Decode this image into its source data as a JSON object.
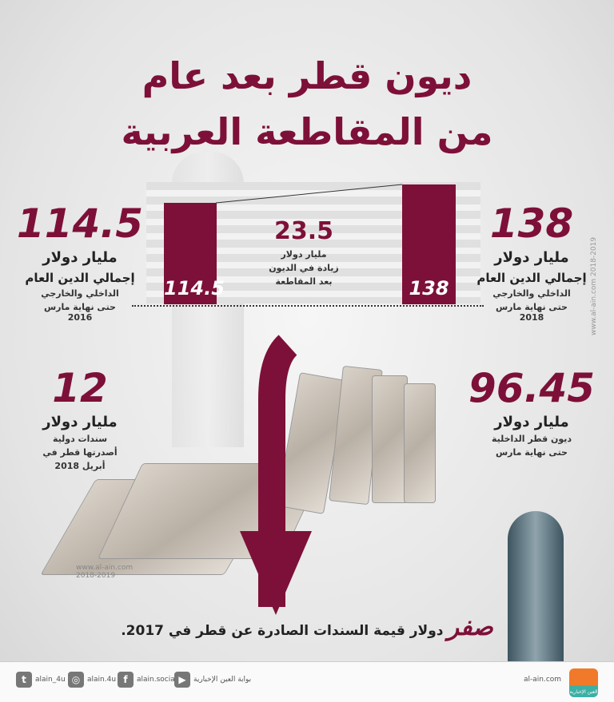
{
  "title": {
    "line1": "ديون قطر بعد عام",
    "line2": "من المقاطعة العربية"
  },
  "left_top": {
    "value": "114.5",
    "unit": "مليار دولار",
    "line1": "إجمالي الدين العام",
    "line2": "الداخلي والخارجي",
    "line3": "حتى نهاية مارس",
    "line4": "2016"
  },
  "right_top": {
    "value": "138",
    "unit": "مليار دولار",
    "line1": "إجمالي الدين العام",
    "line2": "الداخلي والخارجي",
    "line3": "حتى نهاية مارس",
    "line4": "2018"
  },
  "middle": {
    "value": "23.5",
    "unit": "مليار دولار",
    "line1": "زيادة في الديون",
    "line2": "بعد المقاطعة"
  },
  "left_bottom": {
    "value": "12",
    "unit": "مليار دولار",
    "line1": "سندات دولية",
    "line2": "أصدرتها قطر في",
    "line3": "أبريل 2018"
  },
  "right_bottom": {
    "value": "96.45",
    "unit": "مليار دولار",
    "line1": "ديون قطر الداخلية",
    "line2": "حتى نهاية مارس"
  },
  "bottom": {
    "highlight": "صفر",
    "text": "دولار قيمة السندات الصادرة عن قطر في 2017."
  },
  "watermark": {
    "site": "www.al-ain.com",
    "years": "2018-2019"
  },
  "footer": {
    "site": "al-ain.com",
    "youtube": "بوابة العين الإخبارية",
    "facebook": "alain.social",
    "instagram": "alain.4u",
    "twitter": "alain_4u",
    "logo": "العين الإخبارية"
  },
  "colors": {
    "accent": "#7d1038"
  },
  "chart_data": {
    "type": "bar",
    "categories": [
      "2016",
      "2018"
    ],
    "values": [
      114.5,
      138
    ],
    "data_labels": [
      "114.5",
      "138"
    ],
    "ylim": [
      0,
      140
    ],
    "grid": false,
    "legend": "none"
  }
}
